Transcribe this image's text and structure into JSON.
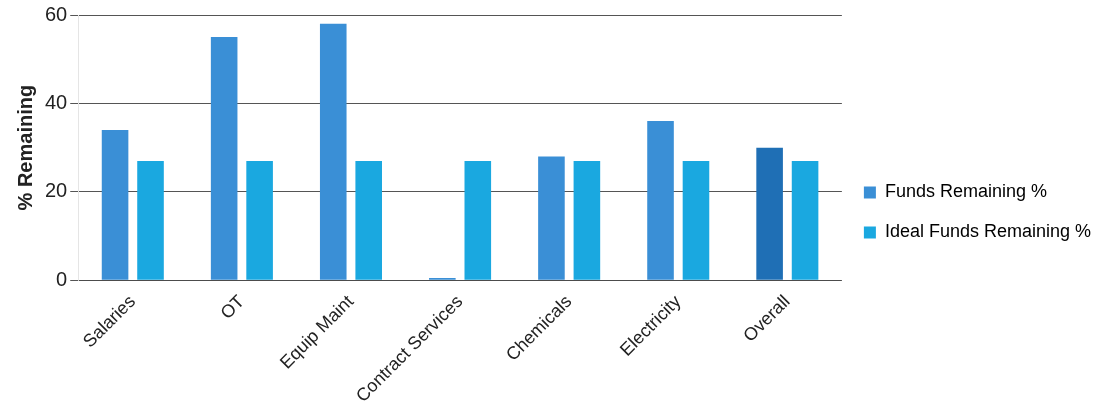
{
  "chart_data": {
    "type": "bar",
    "ylabel": "% Remaining",
    "categories": [
      "Salaries",
      "OT",
      "Equip Maint",
      "Contract Services",
      "Chemicals",
      "Electricity",
      "Overall"
    ],
    "series": [
      {
        "name": "Funds Remaining %",
        "color": "#3a8fd6",
        "colors": [
          "#3a8fd6",
          "#3a8fd6",
          "#3a8fd6",
          "#3a8fd6",
          "#3a8fd6",
          "#3a8fd6",
          "#1f6fb5"
        ],
        "values": [
          34,
          55,
          58,
          0.5,
          28,
          36,
          30
        ]
      },
      {
        "name": "Ideal Funds Remaining %",
        "color": "#1aa8e0",
        "values": [
          27,
          27,
          27,
          27,
          27,
          27,
          27
        ]
      }
    ],
    "ylim": [
      0,
      60
    ],
    "yticks": [
      0,
      20,
      40,
      60
    ],
    "grid": "y",
    "legend": "right"
  }
}
